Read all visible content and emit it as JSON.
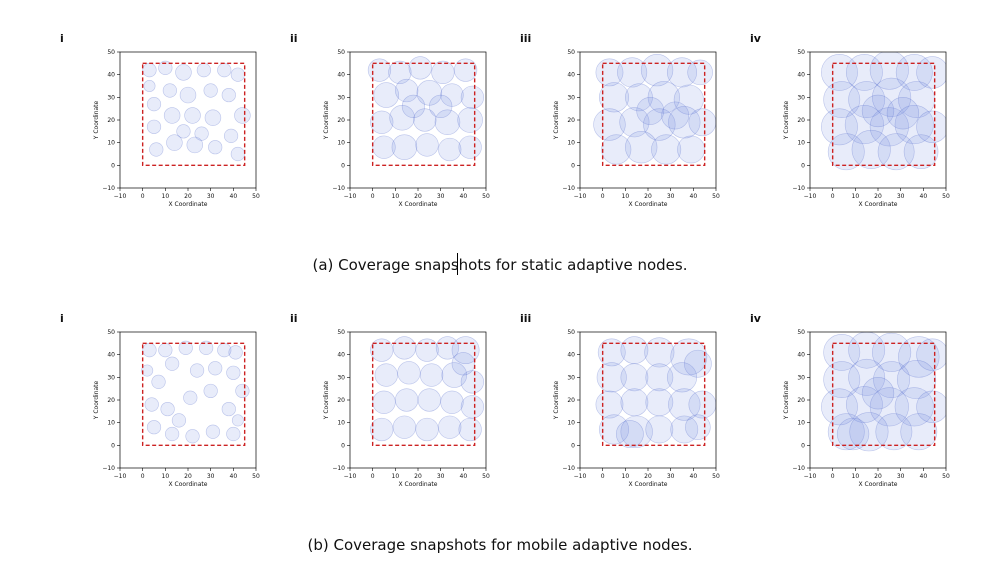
{
  "figure": {
    "caption_a": "(a) Coverage snapshots for static adaptive nodes.",
    "caption_b": "(b) Coverage snapshots for mobile adaptive nodes."
  },
  "colors": {
    "circle_fill": "#6f86e0",
    "circle_stroke": "#4f66c8",
    "boundary": "#cc2222",
    "axis": "#000000"
  },
  "chart_data": [
    {
      "type": "scatter",
      "group": "a",
      "panel_label": "i",
      "xlabel": "X Coordinate",
      "ylabel": "Y Coordinate",
      "xlim": [
        -10,
        50
      ],
      "ylim": [
        -10,
        50
      ],
      "xticks": [
        "−10",
        "0",
        "10",
        "20",
        "30",
        "40",
        "50"
      ],
      "yticks": [
        "−10",
        "0",
        "10",
        "20",
        "30",
        "40",
        "50"
      ],
      "boundary": [
        0,
        45,
        0,
        45
      ],
      "grid": false,
      "nodes": [
        [
          3,
          42,
          3
        ],
        [
          3,
          35,
          2.5
        ],
        [
          10,
          43,
          3
        ],
        [
          18,
          41,
          3.5
        ],
        [
          27,
          42,
          3
        ],
        [
          36,
          42,
          3
        ],
        [
          42,
          40,
          3
        ],
        [
          5,
          27,
          3
        ],
        [
          12,
          33,
          3
        ],
        [
          20,
          31,
          3.5
        ],
        [
          30,
          33,
          3
        ],
        [
          38,
          31,
          3
        ],
        [
          44,
          22,
          3.5
        ],
        [
          5,
          17,
          3
        ],
        [
          13,
          22,
          3.5
        ],
        [
          22,
          22,
          3.5
        ],
        [
          31,
          21,
          3.5
        ],
        [
          39,
          13,
          3
        ],
        [
          6,
          7,
          3
        ],
        [
          14,
          10,
          3.5
        ],
        [
          23,
          9,
          3.5
        ],
        [
          32,
          8,
          3
        ],
        [
          42,
          5,
          3
        ],
        [
          26,
          14,
          3
        ],
        [
          18,
          15,
          3
        ]
      ]
    },
    {
      "type": "scatter",
      "group": "a",
      "panel_label": "ii",
      "xlabel": "X Coordinate",
      "ylabel": "Y Coordinate",
      "xlim": [
        -10,
        50
      ],
      "ylim": [
        -10,
        50
      ],
      "xticks": [
        "−10",
        "0",
        "10",
        "20",
        "30",
        "40",
        "50"
      ],
      "yticks": [
        "−10",
        "0",
        "10",
        "20",
        "30",
        "40",
        "50"
      ],
      "boundary": [
        0,
        45,
        0,
        45
      ],
      "grid": false,
      "nodes": [
        [
          3,
          42,
          5
        ],
        [
          12,
          41,
          5
        ],
        [
          21,
          43,
          5
        ],
        [
          31,
          41,
          5
        ],
        [
          41,
          42,
          5
        ],
        [
          6,
          31,
          5.5
        ],
        [
          15,
          33,
          5
        ],
        [
          25,
          32,
          5.5
        ],
        [
          35,
          31,
          5
        ],
        [
          44,
          30,
          5
        ],
        [
          4,
          19,
          5
        ],
        [
          13,
          21,
          5.5
        ],
        [
          23,
          20,
          5
        ],
        [
          33,
          19,
          5.5
        ],
        [
          43,
          20,
          5.5
        ],
        [
          5,
          8,
          5
        ],
        [
          14,
          8,
          5.5
        ],
        [
          24,
          9,
          5
        ],
        [
          34,
          7,
          5
        ],
        [
          43,
          8,
          5
        ],
        [
          18,
          26,
          5
        ],
        [
          30,
          26,
          5
        ]
      ]
    },
    {
      "type": "scatter",
      "group": "a",
      "panel_label": "iii",
      "xlabel": "X Coordinate",
      "ylabel": "Y Coordinate",
      "xlim": [
        -10,
        50
      ],
      "ylim": [
        -10,
        50
      ],
      "xticks": [
        "−10",
        "0",
        "10",
        "20",
        "30",
        "40",
        "50"
      ],
      "yticks": [
        "−10",
        "0",
        "10",
        "20",
        "30",
        "40",
        "50"
      ],
      "boundary": [
        0,
        45,
        0,
        45
      ],
      "grid": false,
      "nodes": [
        [
          3,
          41,
          6
        ],
        [
          13,
          41,
          6.5
        ],
        [
          24,
          42,
          7
        ],
        [
          35,
          41,
          6.5
        ],
        [
          43,
          41,
          5.5
        ],
        [
          5,
          30,
          6.5
        ],
        [
          16,
          30,
          6
        ],
        [
          27,
          30,
          7
        ],
        [
          38,
          29,
          6.5
        ],
        [
          3,
          18,
          7
        ],
        [
          14,
          19,
          6.5
        ],
        [
          25,
          18,
          7
        ],
        [
          36,
          19,
          7
        ],
        [
          44,
          19,
          6
        ],
        [
          6,
          7,
          6.5
        ],
        [
          17,
          8,
          7
        ],
        [
          28,
          7,
          6.5
        ],
        [
          39,
          7,
          6
        ],
        [
          21,
          24,
          6
        ],
        [
          32,
          22,
          6
        ]
      ]
    },
    {
      "type": "scatter",
      "group": "a",
      "panel_label": "iv",
      "xlabel": "X Coordinate",
      "ylabel": "Y Coordinate",
      "xlim": [
        -10,
        50
      ],
      "ylim": [
        -10,
        50
      ],
      "xticks": [
        "−10",
        "0",
        "10",
        "20",
        "30",
        "40",
        "50"
      ],
      "yticks": [
        "−10",
        "0",
        "10",
        "20",
        "30",
        "40",
        "50"
      ],
      "boundary": [
        0,
        45,
        0,
        45
      ],
      "grid": false,
      "nodes": [
        [
          3,
          41,
          8
        ],
        [
          14,
          41,
          8
        ],
        [
          25,
          42,
          8.5
        ],
        [
          36,
          41,
          8
        ],
        [
          44,
          41,
          7
        ],
        [
          4,
          29,
          8
        ],
        [
          15,
          29,
          8
        ],
        [
          26,
          30,
          8.5
        ],
        [
          37,
          29,
          8
        ],
        [
          3,
          17,
          8
        ],
        [
          14,
          18,
          8.5
        ],
        [
          25,
          17,
          8.5
        ],
        [
          36,
          18,
          8.5
        ],
        [
          44,
          17,
          7
        ],
        [
          6,
          6,
          8
        ],
        [
          17,
          7,
          8.5
        ],
        [
          28,
          6,
          8
        ],
        [
          39,
          6,
          7.5
        ],
        [
          20,
          24,
          7
        ],
        [
          31,
          23,
          7
        ]
      ]
    },
    {
      "type": "scatter",
      "group": "b",
      "panel_label": "i",
      "xlabel": "X Coordinate",
      "ylabel": "Y Coordinate",
      "xlim": [
        -10,
        50
      ],
      "ylim": [
        -10,
        50
      ],
      "xticks": [
        "−10",
        "0",
        "10",
        "20",
        "30",
        "40",
        "50"
      ],
      "yticks": [
        "−10",
        "0",
        "10",
        "20",
        "30",
        "40",
        "50"
      ],
      "boundary": [
        0,
        45,
        0,
        45
      ],
      "grid": false,
      "nodes": [
        [
          3,
          42,
          3
        ],
        [
          2,
          33,
          2.5
        ],
        [
          10,
          42,
          3
        ],
        [
          19,
          43,
          3
        ],
        [
          28,
          43,
          3
        ],
        [
          36,
          42,
          3
        ],
        [
          41,
          41,
          3
        ],
        [
          7,
          28,
          3
        ],
        [
          13,
          36,
          3
        ],
        [
          24,
          33,
          3
        ],
        [
          32,
          34,
          3
        ],
        [
          40,
          32,
          3
        ],
        [
          44,
          24,
          3
        ],
        [
          4,
          18,
          3
        ],
        [
          11,
          16,
          3
        ],
        [
          21,
          21,
          3
        ],
        [
          30,
          24,
          3
        ],
        [
          38,
          16,
          3
        ],
        [
          42,
          11,
          2.5
        ],
        [
          5,
          8,
          3
        ],
        [
          13,
          5,
          3
        ],
        [
          22,
          4,
          3
        ],
        [
          31,
          6,
          3
        ],
        [
          40,
          5,
          3
        ],
        [
          16,
          11,
          3
        ]
      ]
    },
    {
      "type": "scatter",
      "group": "b",
      "panel_label": "ii",
      "xlabel": "X Coordinate",
      "ylabel": "Y Coordinate",
      "xlim": [
        -10,
        50
      ],
      "ylim": [
        -10,
        50
      ],
      "xticks": [
        "−10",
        "0",
        "10",
        "20",
        "30",
        "40",
        "50"
      ],
      "yticks": [
        "−10",
        "0",
        "10",
        "20",
        "30",
        "40",
        "50"
      ],
      "boundary": [
        0,
        45,
        0,
        45
      ],
      "grid": false,
      "nodes": [
        [
          4,
          42,
          5
        ],
        [
          14,
          43,
          5
        ],
        [
          24,
          42,
          5
        ],
        [
          33,
          43,
          5
        ],
        [
          41,
          42,
          6
        ],
        [
          6,
          31,
          5
        ],
        [
          16,
          32,
          5
        ],
        [
          26,
          31,
          5
        ],
        [
          36,
          31,
          5.5
        ],
        [
          44,
          28,
          5
        ],
        [
          5,
          19,
          5
        ],
        [
          15,
          20,
          5
        ],
        [
          25,
          20,
          5
        ],
        [
          35,
          19,
          5
        ],
        [
          44,
          17,
          5
        ],
        [
          4,
          7,
          5
        ],
        [
          14,
          8,
          5
        ],
        [
          24,
          7,
          5
        ],
        [
          34,
          8,
          5
        ],
        [
          43,
          7,
          5
        ],
        [
          40,
          36,
          5
        ]
      ]
    },
    {
      "type": "scatter",
      "group": "b",
      "panel_label": "iii",
      "xlabel": "X Coordinate",
      "ylabel": "Y Coordinate",
      "xlim": [
        -10,
        50
      ],
      "ylim": [
        -10,
        50
      ],
      "xticks": [
        "−10",
        "0",
        "10",
        "20",
        "30",
        "40",
        "50"
      ],
      "yticks": [
        "−10",
        "0",
        "10",
        "20",
        "30",
        "40",
        "50"
      ],
      "boundary": [
        0,
        45,
        0,
        45
      ],
      "grid": false,
      "nodes": [
        [
          4,
          41,
          6
        ],
        [
          14,
          42,
          6
        ],
        [
          25,
          41,
          6.5
        ],
        [
          38,
          39,
          8
        ],
        [
          42,
          36,
          6
        ],
        [
          4,
          30,
          6.5
        ],
        [
          14,
          30,
          6
        ],
        [
          25,
          30,
          6
        ],
        [
          35,
          30,
          6.5
        ],
        [
          3,
          18,
          6
        ],
        [
          14,
          19,
          6
        ],
        [
          25,
          19,
          6
        ],
        [
          36,
          18,
          7
        ],
        [
          44,
          18,
          6
        ],
        [
          5,
          7,
          6.5
        ],
        [
          15,
          6,
          7
        ],
        [
          25,
          7,
          6
        ],
        [
          36,
          7,
          6
        ],
        [
          42,
          8,
          5.5
        ],
        [
          12,
          5,
          6
        ]
      ]
    },
    {
      "type": "scatter",
      "group": "b",
      "panel_label": "iv",
      "xlabel": "X Coordinate",
      "ylabel": "Y Coordinate",
      "xlim": [
        -10,
        50
      ],
      "ylim": [
        -10,
        50
      ],
      "xticks": [
        "−10",
        "0",
        "10",
        "20",
        "30",
        "40",
        "50"
      ],
      "yticks": [
        "−10",
        "0",
        "10",
        "20",
        "30",
        "40",
        "50"
      ],
      "boundary": [
        0,
        45,
        0,
        45
      ],
      "grid": false,
      "nodes": [
        [
          4,
          41,
          8
        ],
        [
          15,
          42,
          8
        ],
        [
          26,
          41,
          8.5
        ],
        [
          38,
          39,
          9
        ],
        [
          44,
          40,
          7
        ],
        [
          4,
          29,
          8
        ],
        [
          15,
          30,
          8
        ],
        [
          26,
          29,
          8
        ],
        [
          37,
          29,
          8.5
        ],
        [
          3,
          17,
          8
        ],
        [
          14,
          18,
          8
        ],
        [
          25,
          17,
          8.5
        ],
        [
          36,
          17,
          8.5
        ],
        [
          44,
          17,
          7
        ],
        [
          6,
          6,
          8
        ],
        [
          16,
          6,
          8.5
        ],
        [
          27,
          6,
          8
        ],
        [
          38,
          6,
          8
        ],
        [
          9,
          5,
          7
        ],
        [
          20,
          23,
          7
        ]
      ]
    }
  ]
}
